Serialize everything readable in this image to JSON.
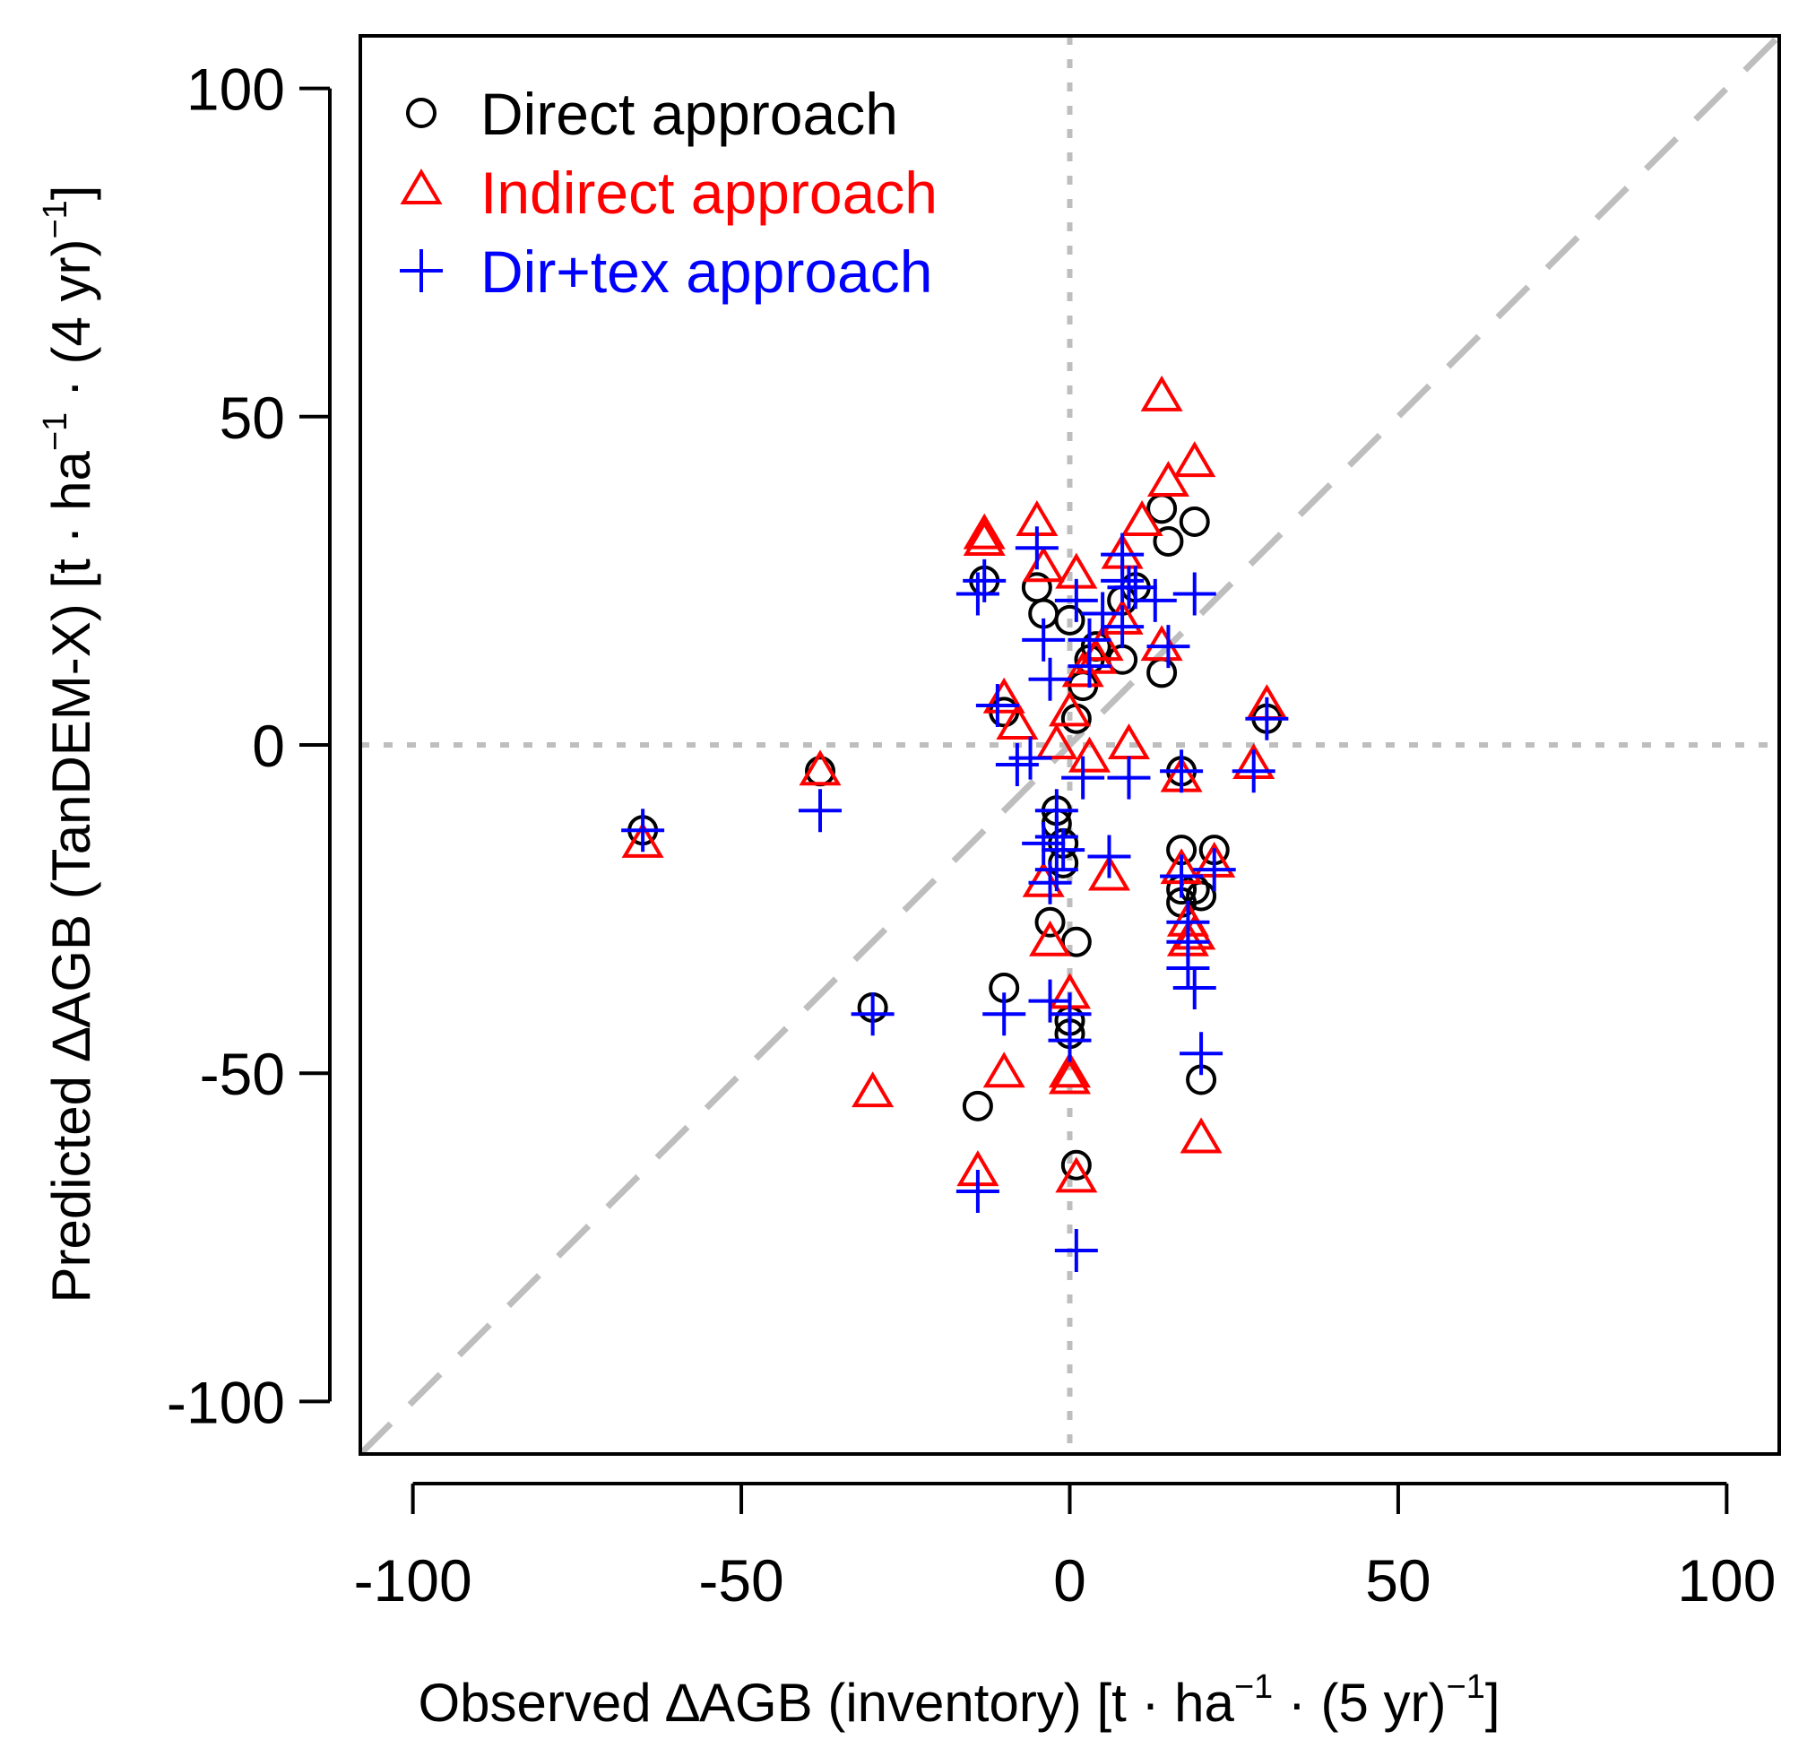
{
  "chart_data": {
    "type": "scatter",
    "title": "",
    "xlabel": {
      "main": "Observed ∆AGB (inventory) [t · ha",
      "sup1": "−1",
      "mid": " · (5 yr)",
      "sup2": "−1",
      "end": "]"
    },
    "ylabel": {
      "main": "Predicted ∆AGB (TanDEM-X) [t · ha",
      "sup1": "−1",
      "mid": " · (4 yr)",
      "sup2": "−1",
      "end": "]"
    },
    "xlim": [
      -108,
      108
    ],
    "ylim": [
      -108,
      108
    ],
    "x_ticks": [
      "-100",
      "-50",
      "0",
      "50",
      "100"
    ],
    "y_ticks": [
      "-100",
      "-50",
      "0",
      "50",
      "100"
    ],
    "grid": false,
    "reference_lines": [
      "x = 0 (dotted)",
      "y = 0 (dotted)",
      "y = x (dashed)"
    ],
    "legend_position": "top-left",
    "series": [
      {
        "name": "Direct approach",
        "marker": "circle",
        "color": "#000000",
        "points": [
          [
            -65,
            -13
          ],
          [
            -38,
            -4
          ],
          [
            -30,
            -40
          ],
          [
            -14,
            -55
          ],
          [
            -13,
            25
          ],
          [
            -10,
            5
          ],
          [
            -10,
            -37
          ],
          [
            -5,
            24
          ],
          [
            -4,
            20
          ],
          [
            -3,
            -27
          ],
          [
            -2,
            -10
          ],
          [
            -2,
            -12
          ],
          [
            -1,
            -18
          ],
          [
            -1,
            -15
          ],
          [
            0,
            19
          ],
          [
            0,
            -42
          ],
          [
            0,
            -44
          ],
          [
            1,
            4
          ],
          [
            1,
            -30
          ],
          [
            1,
            -64
          ],
          [
            2,
            9
          ],
          [
            3,
            13
          ],
          [
            4,
            15
          ],
          [
            8,
            22
          ],
          [
            8,
            13
          ],
          [
            10,
            24
          ],
          [
            14,
            36
          ],
          [
            14,
            11
          ],
          [
            15,
            31
          ],
          [
            17,
            -4
          ],
          [
            17,
            -16
          ],
          [
            17,
            -22
          ],
          [
            17,
            -24
          ],
          [
            19,
            34
          ],
          [
            19,
            -22
          ],
          [
            20,
            -23
          ],
          [
            20,
            -51
          ],
          [
            22,
            -16
          ],
          [
            30,
            4
          ]
        ]
      },
      {
        "name": "Indirect approach",
        "marker": "triangle",
        "color": "#ff0000",
        "points": [
          [
            -65,
            -15
          ],
          [
            -38,
            -4
          ],
          [
            -30,
            -53
          ],
          [
            -14,
            -65
          ],
          [
            -13,
            32
          ],
          [
            -13,
            31
          ],
          [
            -10,
            -50
          ],
          [
            -10,
            7
          ],
          [
            -8,
            3
          ],
          [
            -5,
            34
          ],
          [
            -4,
            27
          ],
          [
            -4,
            -21
          ],
          [
            -3,
            -30
          ],
          [
            -2,
            0
          ],
          [
            0,
            5
          ],
          [
            0,
            -38
          ],
          [
            0,
            -50
          ],
          [
            0,
            -51
          ],
          [
            1,
            -66
          ],
          [
            1,
            26
          ],
          [
            2,
            11
          ],
          [
            3,
            -2
          ],
          [
            4,
            13
          ],
          [
            5,
            15
          ],
          [
            6,
            -20
          ],
          [
            8,
            29
          ],
          [
            8,
            19
          ],
          [
            9,
            0
          ],
          [
            11,
            34
          ],
          [
            14,
            53
          ],
          [
            14,
            15
          ],
          [
            15,
            40
          ],
          [
            17,
            -5
          ],
          [
            17,
            -19
          ],
          [
            18,
            -27
          ],
          [
            18,
            -30
          ],
          [
            19,
            43
          ],
          [
            19,
            -29
          ],
          [
            20,
            -60
          ],
          [
            22,
            -18
          ],
          [
            28,
            -3
          ],
          [
            30,
            6
          ]
        ]
      },
      {
        "name": "Dir+tex approach",
        "marker": "plus",
        "color": "#0000ff",
        "points": [
          [
            -65,
            -13
          ],
          [
            -38,
            -10
          ],
          [
            -30,
            -41
          ],
          [
            -14,
            -68
          ],
          [
            -14,
            23
          ],
          [
            -13,
            25
          ],
          [
            -11,
            6
          ],
          [
            -10,
            -41
          ],
          [
            -8,
            -3
          ],
          [
            -6,
            -2
          ],
          [
            -5,
            30
          ],
          [
            -4,
            16
          ],
          [
            -4,
            -15
          ],
          [
            -3,
            -21
          ],
          [
            -3,
            10
          ],
          [
            -3,
            -39
          ],
          [
            -2,
            -10
          ],
          [
            -2,
            -14
          ],
          [
            -2,
            -19
          ],
          [
            -1,
            -16
          ],
          [
            0,
            -41
          ],
          [
            0,
            -45
          ],
          [
            1,
            22
          ],
          [
            1,
            -77
          ],
          [
            2,
            -5
          ],
          [
            3,
            16
          ],
          [
            3,
            12
          ],
          [
            5,
            20
          ],
          [
            6,
            -17
          ],
          [
            8,
            29
          ],
          [
            8,
            25
          ],
          [
            8,
            18
          ],
          [
            9,
            -5
          ],
          [
            9,
            24
          ],
          [
            10,
            24
          ],
          [
            13,
            22
          ],
          [
            15,
            15
          ],
          [
            17,
            -4
          ],
          [
            17,
            -20
          ],
          [
            18,
            -30
          ],
          [
            18,
            -27
          ],
          [
            18,
            -34
          ],
          [
            19,
            -37
          ],
          [
            19,
            23
          ],
          [
            20,
            -47
          ],
          [
            22,
            -19
          ],
          [
            28,
            -4
          ],
          [
            30,
            4
          ]
        ]
      }
    ]
  }
}
